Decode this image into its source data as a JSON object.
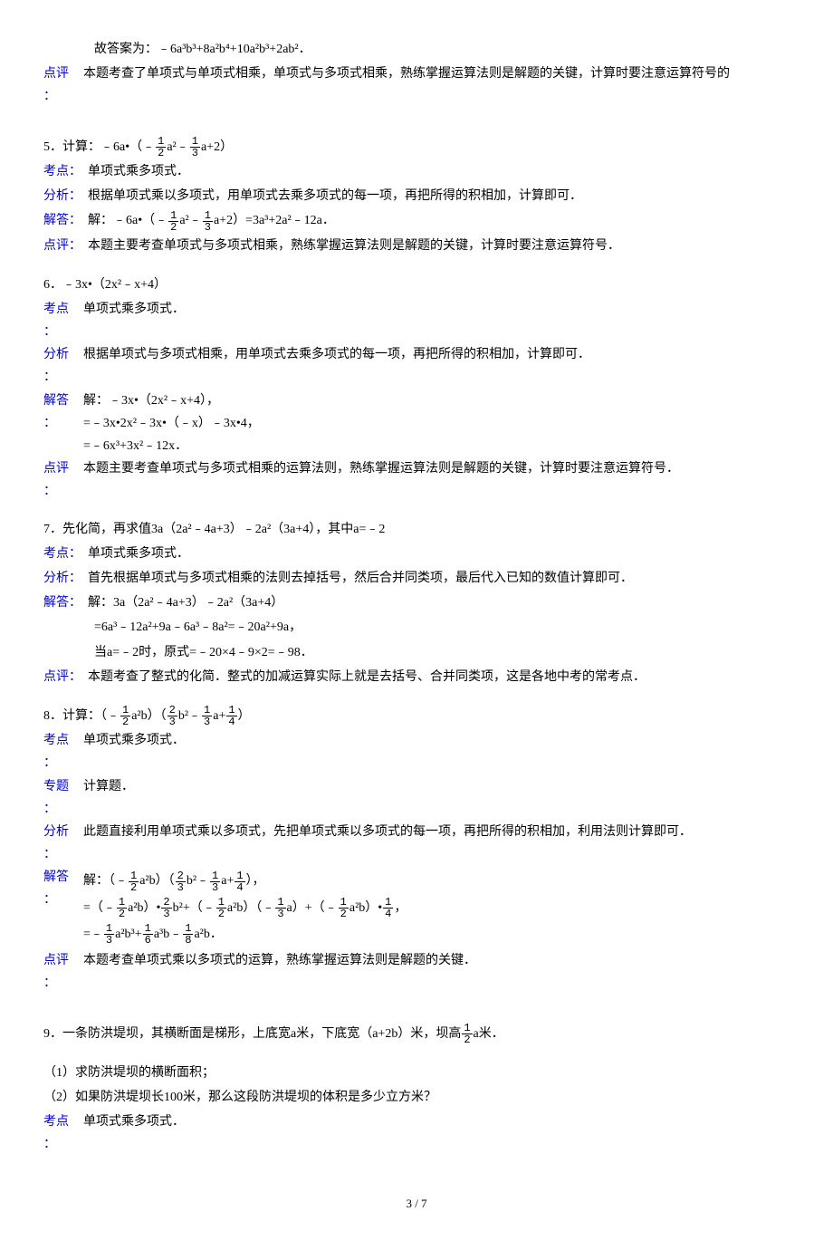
{
  "colors": {
    "label_blue": "#0000cc",
    "text": "#000000",
    "bg": "#ffffff"
  },
  "fontsize_body": 14,
  "top_answer": "故答案为：﹣6a³b³+8a²b⁴+10a²b³+2ab²．",
  "top_review": "本题考查了单项式与单项式相乘，单项式与多项式相乘，熟练掌握运算法则是解题的关键，计算时要注意运算符号的",
  "q5": {
    "title_pre": "5．计算：﹣6a•（﹣",
    "title_mid1": "a²﹣",
    "title_mid2": "a+2）",
    "kaodian": "单项式乘多项式．",
    "fenxi": "根据单项式乘以多项式，用单项式去乘多项式的每一项，再把所得的积相加，计算即可．",
    "jieda_pre": "解：﹣6a•（﹣",
    "jieda_mid1": "a²﹣",
    "jieda_mid2": "a+2）=3a³+2a²﹣12a．",
    "dianping": "本题主要考查单项式与多项式相乘，熟练掌握运算法则是解题的关键，计算时要注意运算符号．"
  },
  "q6": {
    "title": "6．﹣3x•（2x²﹣x+4）",
    "kaodian": "单项式乘多项式．",
    "fenxi": "根据单项式与多项式相乘，用单项式去乘多项式的每一项，再把所得的积相加，计算即可．",
    "jieda_l1": "解：﹣3x•（2x²﹣x+4），",
    "jieda_l2": "=﹣3x•2x²﹣3x•（﹣x）﹣3x•4，",
    "jieda_l3": "=﹣6x³+3x²﹣12x．",
    "dianping": "本题主要考查单项式与多项式相乘的运算法则，熟练掌握运算法则是解题的关键，计算时要注意运算符号．"
  },
  "q7": {
    "title": "7．先化简，再求值3a（2a²﹣4a+3）﹣2a²（3a+4），其中a=﹣2",
    "kaodian": "单项式乘多项式．",
    "fenxi": "首先根据单项式与多项式相乘的法则去掉括号，然后合并同类项，最后代入已知的数值计算即可．",
    "jieda_l1": "解：3a（2a²﹣4a+3）﹣2a²（3a+4）",
    "jieda_l2": "=6a³﹣12a²+9a﹣6a³﹣8a²=﹣20a²+9a，",
    "jieda_l3": "当a=﹣2时，原式=﹣20×4﹣9×2=﹣98．",
    "dianping": "本题考查了整式的化简．整式的加减运算实际上就是去括号、合并同类项，这是各地中考的常考点．"
  },
  "q8": {
    "title_pre": "8．计算：（﹣",
    "title_mid1": "a²b）（",
    "title_mid2": "b²﹣",
    "title_mid3": "a+",
    "title_mid4": "）",
    "kaodian": "单项式乘多项式．",
    "zhuanti": "计算题．",
    "fenxi": "此题直接利用单项式乘以多项式，先把单项式乘以多项式的每一项，再把所得的积相加，利用法则计算即可．",
    "jieda_l1_pre": "解：（﹣",
    "jieda_l1_m1": "a²b）（",
    "jieda_l1_m2": "b²﹣",
    "jieda_l1_m3": "a+",
    "jieda_l1_m4": "），",
    "jieda_l2_p1": "=（﹣",
    "jieda_l2_p2": "a²b）•",
    "jieda_l2_p3": "b²+（﹣",
    "jieda_l2_p4": "a²b）（﹣",
    "jieda_l2_p5": "a）+（﹣",
    "jieda_l2_p6": "a²b）•",
    "jieda_l2_p7": "，",
    "jieda_l3_p1": "=﹣",
    "jieda_l3_p2": "a²b³+",
    "jieda_l3_p3": "a³b﹣",
    "jieda_l3_p4": "a²b．",
    "dianping": "本题考查单项式乘以多项式的运算，熟练掌握运算法则是解题的关键．"
  },
  "q9": {
    "title_pre": "9．一条防洪堤坝，其横断面是梯形，上底宽a米，下底宽（a+2b）米，坝高",
    "title_post": "a米．",
    "sub1": "（1）求防洪堤坝的横断面积；",
    "sub2": "（2）如果防洪堤坝长100米，那么这段防洪堤坝的体积是多少立方米？",
    "kaodian": "单项式乘多项式．"
  },
  "labels": {
    "kaodian": "考点：",
    "kaodian_v": "考点",
    "fenxi": "分析：",
    "fenxi_v": "分析",
    "jieda": "解答：",
    "jieda_v": "解答",
    "dianping": "点评：",
    "dianping_v": "点评",
    "zhuanti_v": "专题",
    "colon": "："
  },
  "page": "3 / 7"
}
